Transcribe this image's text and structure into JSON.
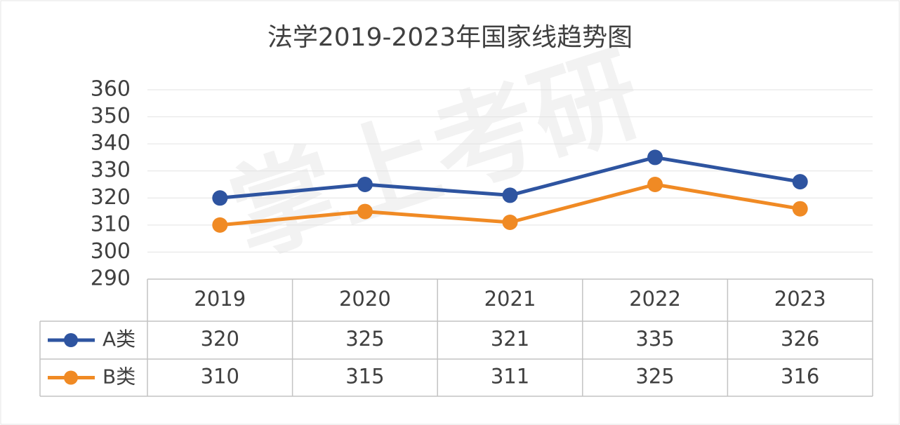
{
  "chart_data": {
    "type": "line",
    "title": "法学2019-2023年国家线趋势图",
    "watermark": "掌上考研",
    "categories": [
      "2019",
      "2020",
      "2021",
      "2022",
      "2023"
    ],
    "series": [
      {
        "name": "A类",
        "color": "#2e54a0",
        "values": [
          320,
          325,
          321,
          335,
          326
        ]
      },
      {
        "name": "B类",
        "color": "#f08a24",
        "values": [
          310,
          315,
          311,
          325,
          316
        ]
      }
    ],
    "ylim": [
      290,
      360
    ],
    "yticks": [
      290,
      300,
      310,
      320,
      330,
      340,
      350,
      360
    ],
    "grid": true
  }
}
